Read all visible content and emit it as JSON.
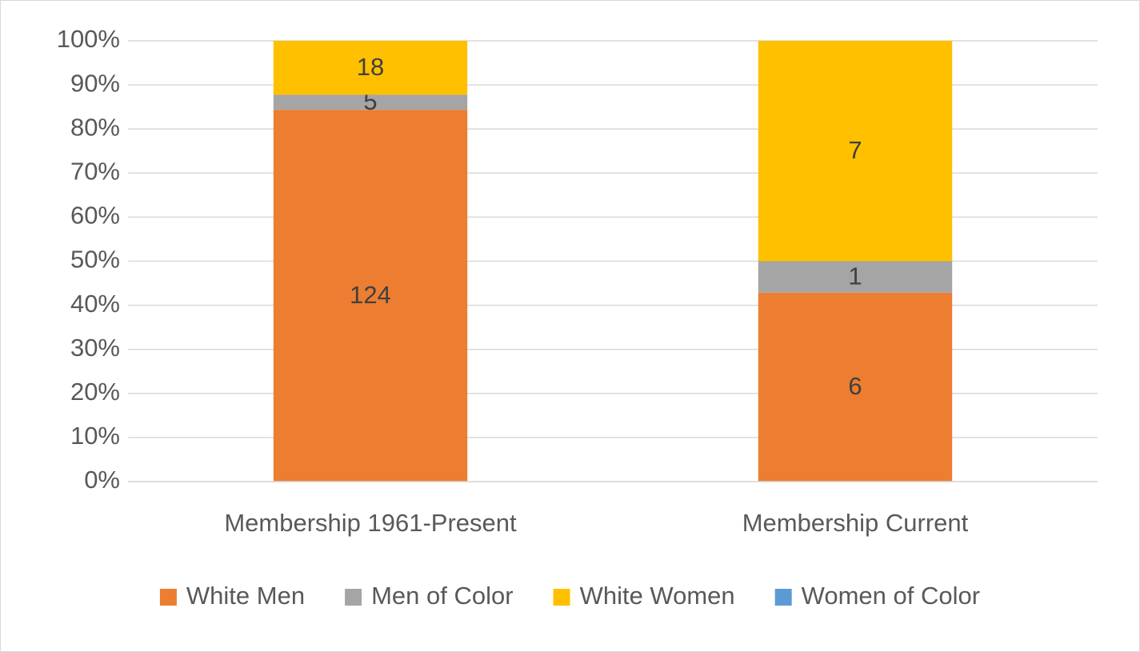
{
  "chart_data": {
    "type": "bar",
    "stacking": "percent",
    "categories": [
      "Membership 1961-Present",
      "Membership Current"
    ],
    "series": [
      {
        "name": "White Men",
        "color": "#ED7D31",
        "values": [
          124,
          6
        ]
      },
      {
        "name": "Men of Color",
        "color": "#A5A5A5",
        "values": [
          5,
          1
        ]
      },
      {
        "name": "White Women",
        "color": "#FFC000",
        "values": [
          18,
          7
        ]
      },
      {
        "name": "Women of Color",
        "color": "#5B9BD5",
        "values": [
          0,
          0
        ]
      }
    ],
    "ylim": [
      0,
      100
    ],
    "yticks": [
      {
        "value": 0,
        "label": "0%"
      },
      {
        "value": 10,
        "label": "10%"
      },
      {
        "value": 20,
        "label": "20%"
      },
      {
        "value": 30,
        "label": "30%"
      },
      {
        "value": 40,
        "label": "40%"
      },
      {
        "value": 50,
        "label": "50%"
      },
      {
        "value": 60,
        "label": "60%"
      },
      {
        "value": 70,
        "label": "70%"
      },
      {
        "value": 80,
        "label": "80%"
      },
      {
        "value": 90,
        "label": "90%"
      },
      {
        "value": 100,
        "label": "100%"
      }
    ],
    "grid": true,
    "legend": "bottom"
  }
}
